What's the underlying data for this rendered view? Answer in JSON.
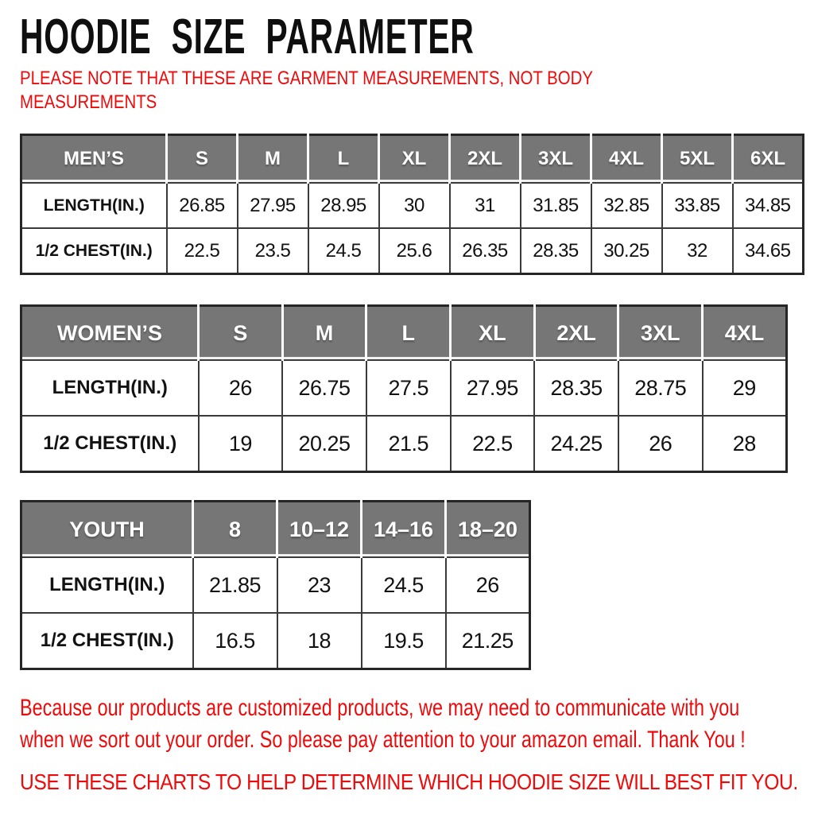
{
  "title": "HOODIE SIZE PARAMETER",
  "note": "PLEASE NOTE THAT THESE ARE GARMENT MEASUREMENTS, NOT BODY\nMEASUREMENTS",
  "colors": {
    "accent_red": "#ee0a0a",
    "header_gray": "#767676",
    "border_dark": "#3a3a3a",
    "text_black": "#121212"
  },
  "tables": {
    "mens": {
      "header": [
        "MEN’S",
        "S",
        "M",
        "L",
        "XL",
        "2XL",
        "3XL",
        "4XL",
        "5XL",
        "6XL"
      ],
      "rows": [
        [
          "LENGTH(IN.)",
          "26.85",
          "27.95",
          "28.95",
          "30",
          "31",
          "31.85",
          "32.85",
          "33.85",
          "34.85"
        ],
        [
          "1/2 CHEST(IN.)",
          "22.5",
          "23.5",
          "24.5",
          "25.6",
          "26.35",
          "28.35",
          "30.25",
          "32",
          "34.65"
        ]
      ]
    },
    "womens": {
      "header": [
        "WOMEN’S",
        "S",
        "M",
        "L",
        "XL",
        "2XL",
        "3XL",
        "4XL"
      ],
      "rows": [
        [
          "LENGTH(IN.)",
          "26",
          "26.75",
          "27.5",
          "27.95",
          "28.35",
          "28.75",
          "29"
        ],
        [
          "1/2 CHEST(IN.)",
          "19",
          "20.25",
          "21.5",
          "22.5",
          "24.25",
          "26",
          "28"
        ]
      ]
    },
    "youth": {
      "header": [
        "YOUTH",
        "8",
        "10–12",
        "14–16",
        "18–20"
      ],
      "rows": [
        [
          "LENGTH(IN.)",
          "21.85",
          "23",
          "24.5",
          "26"
        ],
        [
          "1/2 CHEST(IN.)",
          "16.5",
          "18",
          "19.5",
          "21.25"
        ]
      ]
    }
  },
  "footer": {
    "contact_note": "Because our products are customized products, we may need to communicate with you\nwhen we sort out your order. So please pay attention to your amazon email. Thank You !",
    "usage_note": "USE THESE CHARTS TO HELP DETERMINE WHICH HOODIE SIZE WILL BEST FIT YOU."
  }
}
